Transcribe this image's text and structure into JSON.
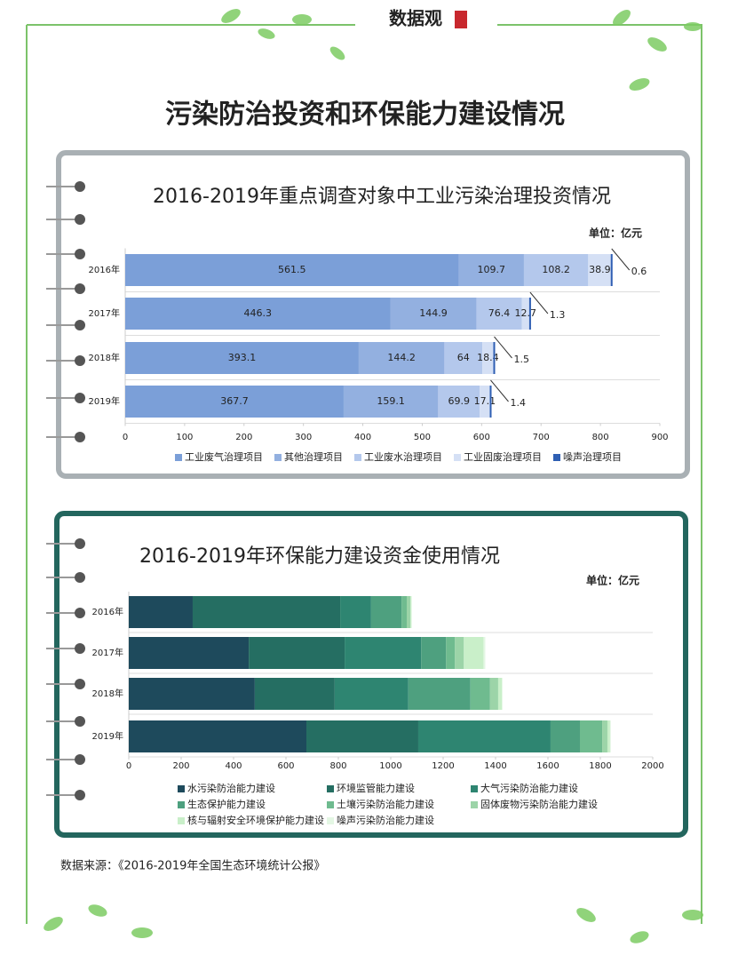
{
  "header": {
    "brand": "数据观",
    "title": "污染防治投资和环保能力建设情况"
  },
  "source": "数据来源：《2016-2019年全国生态环境统计公报》",
  "chart_data": [
    {
      "type": "bar",
      "orientation": "horizontal",
      "stacked": true,
      "title": "2016-2019年重点调查对象中工业污染治理投资情况",
      "unit": "单位：亿元",
      "categories": [
        "2016年",
        "2017年",
        "2018年",
        "2019年"
      ],
      "series": [
        {
          "name": "工业废气治理项目",
          "color": "#7b9fd8",
          "values": [
            561.5,
            446.3,
            393.1,
            367.7
          ]
        },
        {
          "name": "其他治理项目",
          "color": "#93b0e0",
          "values": [
            109.7,
            144.9,
            144.2,
            159.1
          ]
        },
        {
          "name": "工业废水治理项目",
          "color": "#b4c8ec",
          "values": [
            108.2,
            76.4,
            64,
            69.9
          ]
        },
        {
          "name": "工业固废治理项目",
          "color": "#d5e0f5",
          "values": [
            38.9,
            12.7,
            18.4,
            17.1
          ]
        },
        {
          "name": "噪声治理项目",
          "color": "#2f5fb3",
          "values": [
            0.6,
            1.3,
            1.5,
            1.4
          ]
        }
      ],
      "xlim": [
        0,
        900
      ],
      "xticks": [
        0,
        100,
        200,
        300,
        400,
        500,
        600,
        700,
        800,
        900
      ],
      "data_labels": true
    },
    {
      "type": "bar",
      "orientation": "horizontal",
      "stacked": true,
      "title": "2016-2019年环保能力建设资金使用情况",
      "unit": "单位：亿元",
      "categories": [
        "2016年",
        "2017年",
        "2018年",
        "2019年"
      ],
      "series": [
        {
          "name": "水污染防治能力建设",
          "color": "#1e4a5c",
          "values": [
            244,
            458,
            481,
            678
          ]
        },
        {
          "name": "环境监管能力建设",
          "color": "#256e62",
          "values": [
            563,
            366,
            305,
            427
          ]
        },
        {
          "name": "大气污染防治能力建设",
          "color": "#2e8571",
          "values": [
            118,
            292,
            281,
            505
          ]
        },
        {
          "name": "生态保护能力建设",
          "color": "#4ea07f",
          "values": [
            116,
            95,
            237,
            112
          ]
        },
        {
          "name": "土壤污染防治能力建设",
          "color": "#6fbb8f",
          "values": [
            20,
            34,
            75,
            85
          ]
        },
        {
          "name": "固体废物污染防治能力建设",
          "color": "#9cd4a8",
          "values": [
            14,
            34,
            31,
            20
          ]
        },
        {
          "name": "核与辐射安全环境保护能力建设",
          "color": "#c9efc9",
          "values": [
            4,
            75,
            14,
            10
          ]
        },
        {
          "name": "噪声污染防治能力建设",
          "color": "#e4f7e4",
          "values": [
            1,
            7,
            3,
            3
          ]
        }
      ],
      "xlim": [
        0,
        2000
      ],
      "xticks": [
        0,
        200,
        400,
        600,
        800,
        1000,
        1200,
        1400,
        1600,
        1800,
        2000
      ],
      "data_labels": false
    }
  ]
}
